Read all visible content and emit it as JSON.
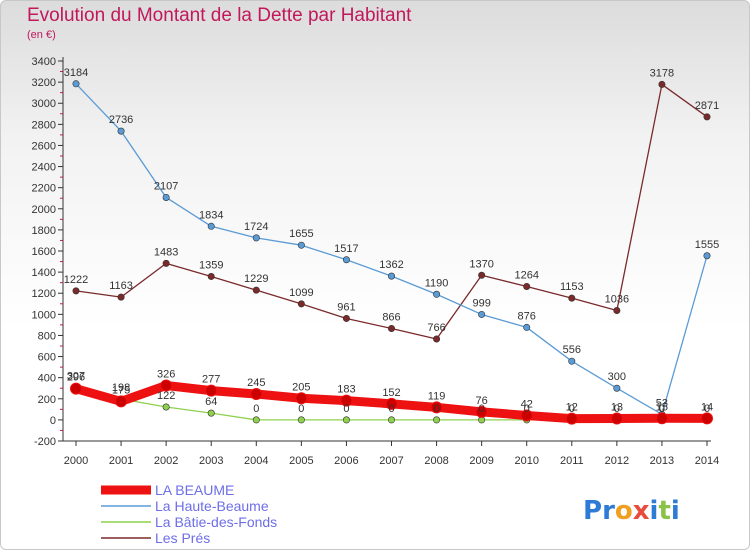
{
  "header": {
    "title": "Evolution du Montant de la Dette par Habitant",
    "subtitle": "(en €)"
  },
  "brand": {
    "letters": [
      "P",
      "r",
      "o",
      "x",
      "i",
      "t",
      "i"
    ],
    "colors": [
      "#2e7bd6",
      "#2e7bd6",
      "#f0a020",
      "#e84c3d",
      "#2e7bd6",
      "#8bc34a",
      "#2e7bd6"
    ]
  },
  "chart_data": {
    "type": "line",
    "title": "Evolution du Montant de la Dette par Habitant",
    "ylabel": "(en €)",
    "xlabel": "",
    "x": [
      2000,
      2001,
      2002,
      2003,
      2004,
      2005,
      2006,
      2007,
      2008,
      2009,
      2010,
      2011,
      2012,
      2013,
      2014
    ],
    "ylim": [
      -200,
      3400
    ],
    "ytick_step": 200,
    "grid": false,
    "legend_position": "bottom-left",
    "series": [
      {
        "name": "LA BEAUME",
        "color": "#ee1111",
        "values": [
          296,
          175,
          326,
          277,
          245,
          205,
          183,
          152,
          119,
          76,
          42,
          12,
          13,
          15,
          14
        ],
        "labels": [
          "296",
          "175",
          "326",
          "277",
          "245",
          "205",
          "183",
          "152",
          "119",
          "76",
          "42",
          "12",
          "13",
          "15",
          "14"
        ]
      },
      {
        "name": "La Haute-Beaume",
        "color": "#5b9bd5",
        "values": [
          3184,
          2736,
          2107,
          1834,
          1724,
          1655,
          1517,
          1362,
          1190,
          999,
          876,
          556,
          300,
          53,
          1555
        ],
        "labels": [
          "3184",
          "2736",
          "2107",
          "1834",
          "1724",
          "1655",
          "1517",
          "1362",
          "1190",
          "999",
          "876",
          "556",
          "300",
          "53",
          "1555"
        ]
      },
      {
        "name": "La Bâtie-des-Fonds",
        "color": "#8fd14f",
        "values": [
          307,
          198,
          122,
          64,
          0,
          0,
          0,
          0,
          0,
          0,
          0,
          0,
          0,
          0,
          0
        ],
        "labels": [
          "307",
          "198",
          "122",
          "64",
          "0",
          "0",
          "0",
          "0",
          "0",
          "0",
          "0",
          "0",
          "0",
          "0",
          "0"
        ]
      },
      {
        "name": "Les Prés",
        "color": "#7a2a2a",
        "values": [
          1222,
          1163,
          1483,
          1359,
          1229,
          1099,
          961,
          866,
          766,
          1370,
          1264,
          1153,
          1036,
          3178,
          2871
        ],
        "labels": [
          "1222",
          "1163",
          "1483",
          "1359",
          "1229",
          "1099",
          "961",
          "866",
          "766",
          "1370",
          "1264",
          "1153",
          "1036",
          "3178",
          "2871"
        ]
      }
    ]
  }
}
